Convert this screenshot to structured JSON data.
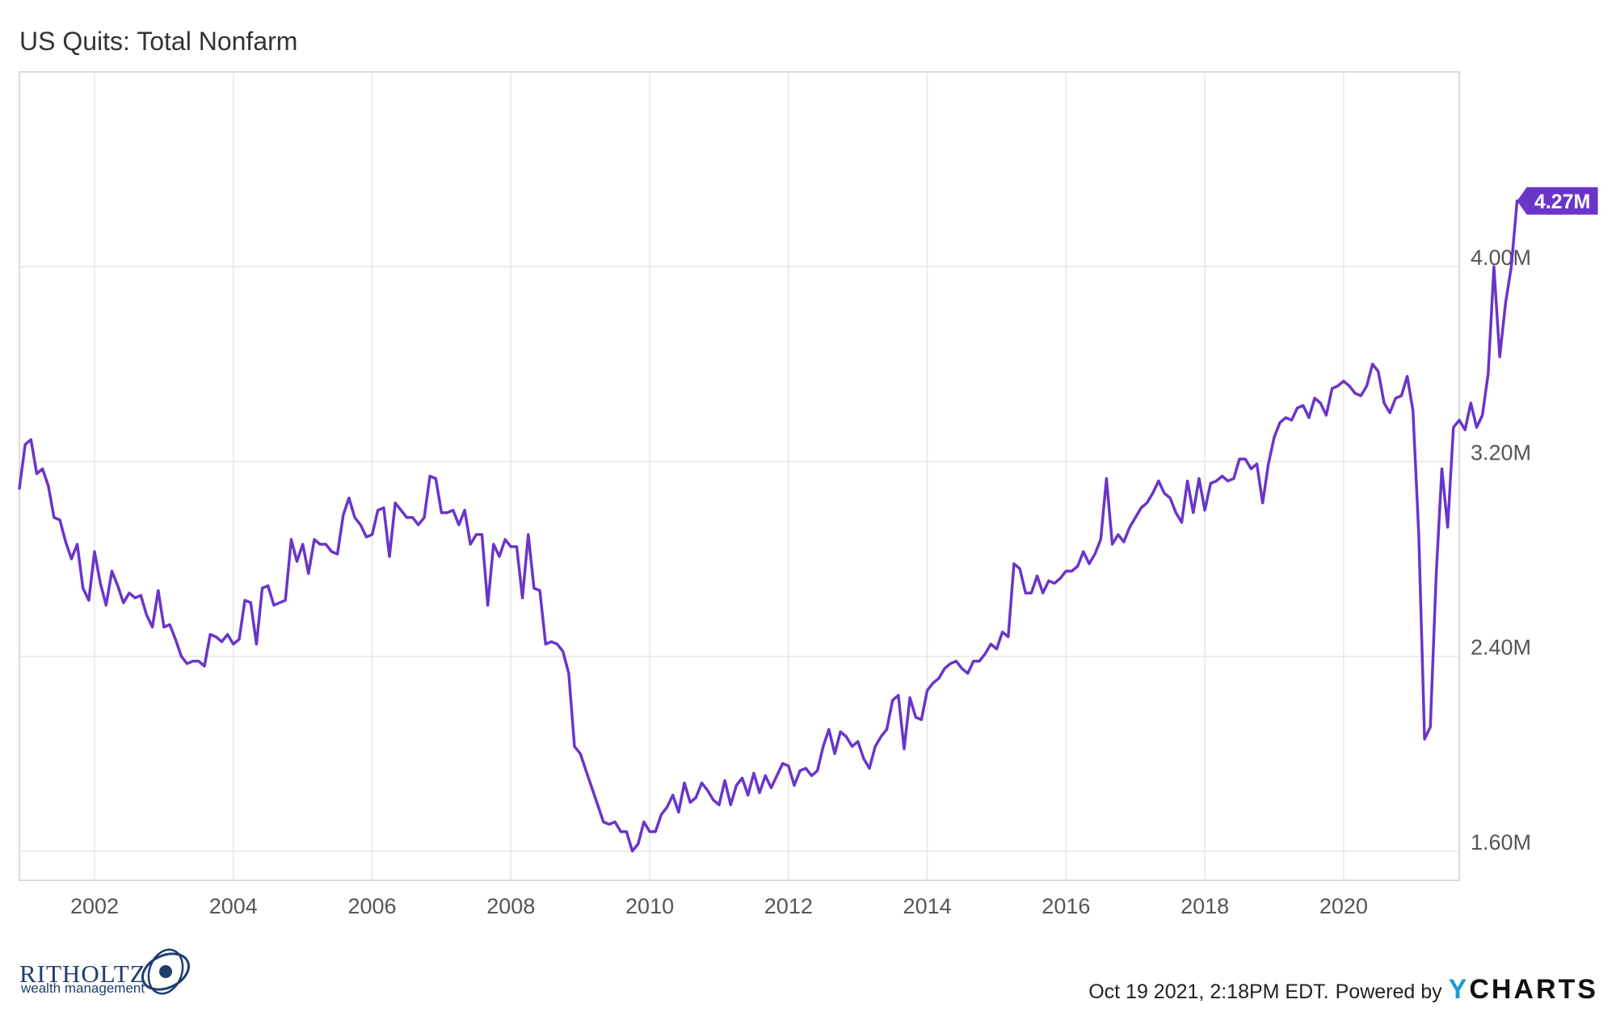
{
  "chart_data": {
    "type": "line",
    "title": "US Quits: Total Nonfarm",
    "xlabel": "",
    "ylabel": "",
    "x_ticks": [
      "2002",
      "2004",
      "2006",
      "2008",
      "2010",
      "2012",
      "2014",
      "2016",
      "2018",
      "2020"
    ],
    "y_ticks": [
      "1.60M",
      "2.40M",
      "3.20M",
      "4.00M"
    ],
    "xlim": [
      "2000-12",
      "2021-09"
    ],
    "ylim": [
      1.48,
      4.8
    ],
    "grid": true,
    "line_color": "#6a35c9",
    "last_value_label": "4.27M",
    "series": [
      {
        "start": "2000-12",
        "frequency": "monthly",
        "values": [
          3.09,
          3.27,
          3.29,
          3.15,
          3.17,
          3.1,
          2.97,
          2.96,
          2.87,
          2.8,
          2.86,
          2.68,
          2.63,
          2.83,
          2.7,
          2.61,
          2.75,
          2.69,
          2.62,
          2.66,
          2.64,
          2.65,
          2.57,
          2.52,
          2.67,
          2.52,
          2.53,
          2.47,
          2.4,
          2.37,
          2.38,
          2.38,
          2.36,
          2.49,
          2.48,
          2.46,
          2.49,
          2.45,
          2.47,
          2.63,
          2.62,
          2.45,
          2.68,
          2.69,
          2.61,
          2.62,
          2.63,
          2.88,
          2.79,
          2.86,
          2.74,
          2.88,
          2.86,
          2.86,
          2.83,
          2.82,
          2.98,
          3.05,
          2.97,
          2.94,
          2.89,
          2.9,
          3.0,
          3.01,
          2.81,
          3.03,
          3.0,
          2.97,
          2.97,
          2.94,
          2.97,
          3.14,
          3.13,
          2.99,
          2.99,
          3.0,
          2.94,
          3.0,
          2.86,
          2.9,
          2.9,
          2.61,
          2.86,
          2.81,
          2.88,
          2.85,
          2.85,
          2.64,
          2.9,
          2.68,
          2.67,
          2.45,
          2.46,
          2.45,
          2.42,
          2.33,
          2.03,
          2.0,
          1.93,
          1.86,
          1.79,
          1.72,
          1.71,
          1.72,
          1.68,
          1.68,
          1.6,
          1.63,
          1.72,
          1.68,
          1.68,
          1.75,
          1.78,
          1.83,
          1.76,
          1.88,
          1.8,
          1.82,
          1.88,
          1.85,
          1.81,
          1.79,
          1.89,
          1.79,
          1.87,
          1.9,
          1.83,
          1.92,
          1.84,
          1.91,
          1.86,
          1.91,
          1.96,
          1.95,
          1.87,
          1.93,
          1.94,
          1.91,
          1.93,
          2.03,
          2.1,
          2.0,
          2.09,
          2.07,
          2.03,
          2.05,
          1.98,
          1.94,
          2.03,
          2.07,
          2.1,
          2.22,
          2.24,
          2.02,
          2.23,
          2.15,
          2.14,
          2.26,
          2.29,
          2.31,
          2.35,
          2.37,
          2.38,
          2.35,
          2.33,
          2.38,
          2.38,
          2.41,
          2.45,
          2.43,
          2.5,
          2.48,
          2.78,
          2.76,
          2.66,
          2.66,
          2.73,
          2.66,
          2.71,
          2.7,
          2.72,
          2.75,
          2.75,
          2.77,
          2.83,
          2.78,
          2.82,
          2.88,
          3.13,
          2.86,
          2.9,
          2.87,
          2.93,
          2.97,
          3.01,
          3.03,
          3.07,
          3.12,
          3.07,
          3.05,
          2.99,
          2.95,
          3.12,
          2.99,
          3.13,
          3.0,
          3.11,
          3.12,
          3.14,
          3.12,
          3.13,
          3.21,
          3.21,
          3.17,
          3.19,
          3.03,
          3.19,
          3.3,
          3.36,
          3.38,
          3.37,
          3.42,
          3.43,
          3.38,
          3.46,
          3.44,
          3.39,
          3.5,
          3.51,
          3.53,
          3.51,
          3.48,
          3.47,
          3.51,
          3.6,
          3.57,
          3.44,
          3.4,
          3.46,
          3.47,
          3.55,
          3.41,
          2.9,
          2.06,
          2.11,
          2.73,
          3.17,
          2.93,
          3.34,
          3.37,
          3.33,
          3.44,
          3.34,
          3.39,
          3.56,
          4.0,
          3.63,
          3.85,
          4.0,
          4.27
        ]
      }
    ]
  },
  "footer": {
    "timestamp_text": "Oct 19 2021, 2:18PM EDT.",
    "powered_by_text": "Powered by",
    "brand_y": "Y",
    "brand_rest": "CHARTS",
    "brand_color": "#1b9bd1"
  },
  "logo": {
    "name": "RITHOLTZ",
    "subtitle": "wealth management"
  }
}
